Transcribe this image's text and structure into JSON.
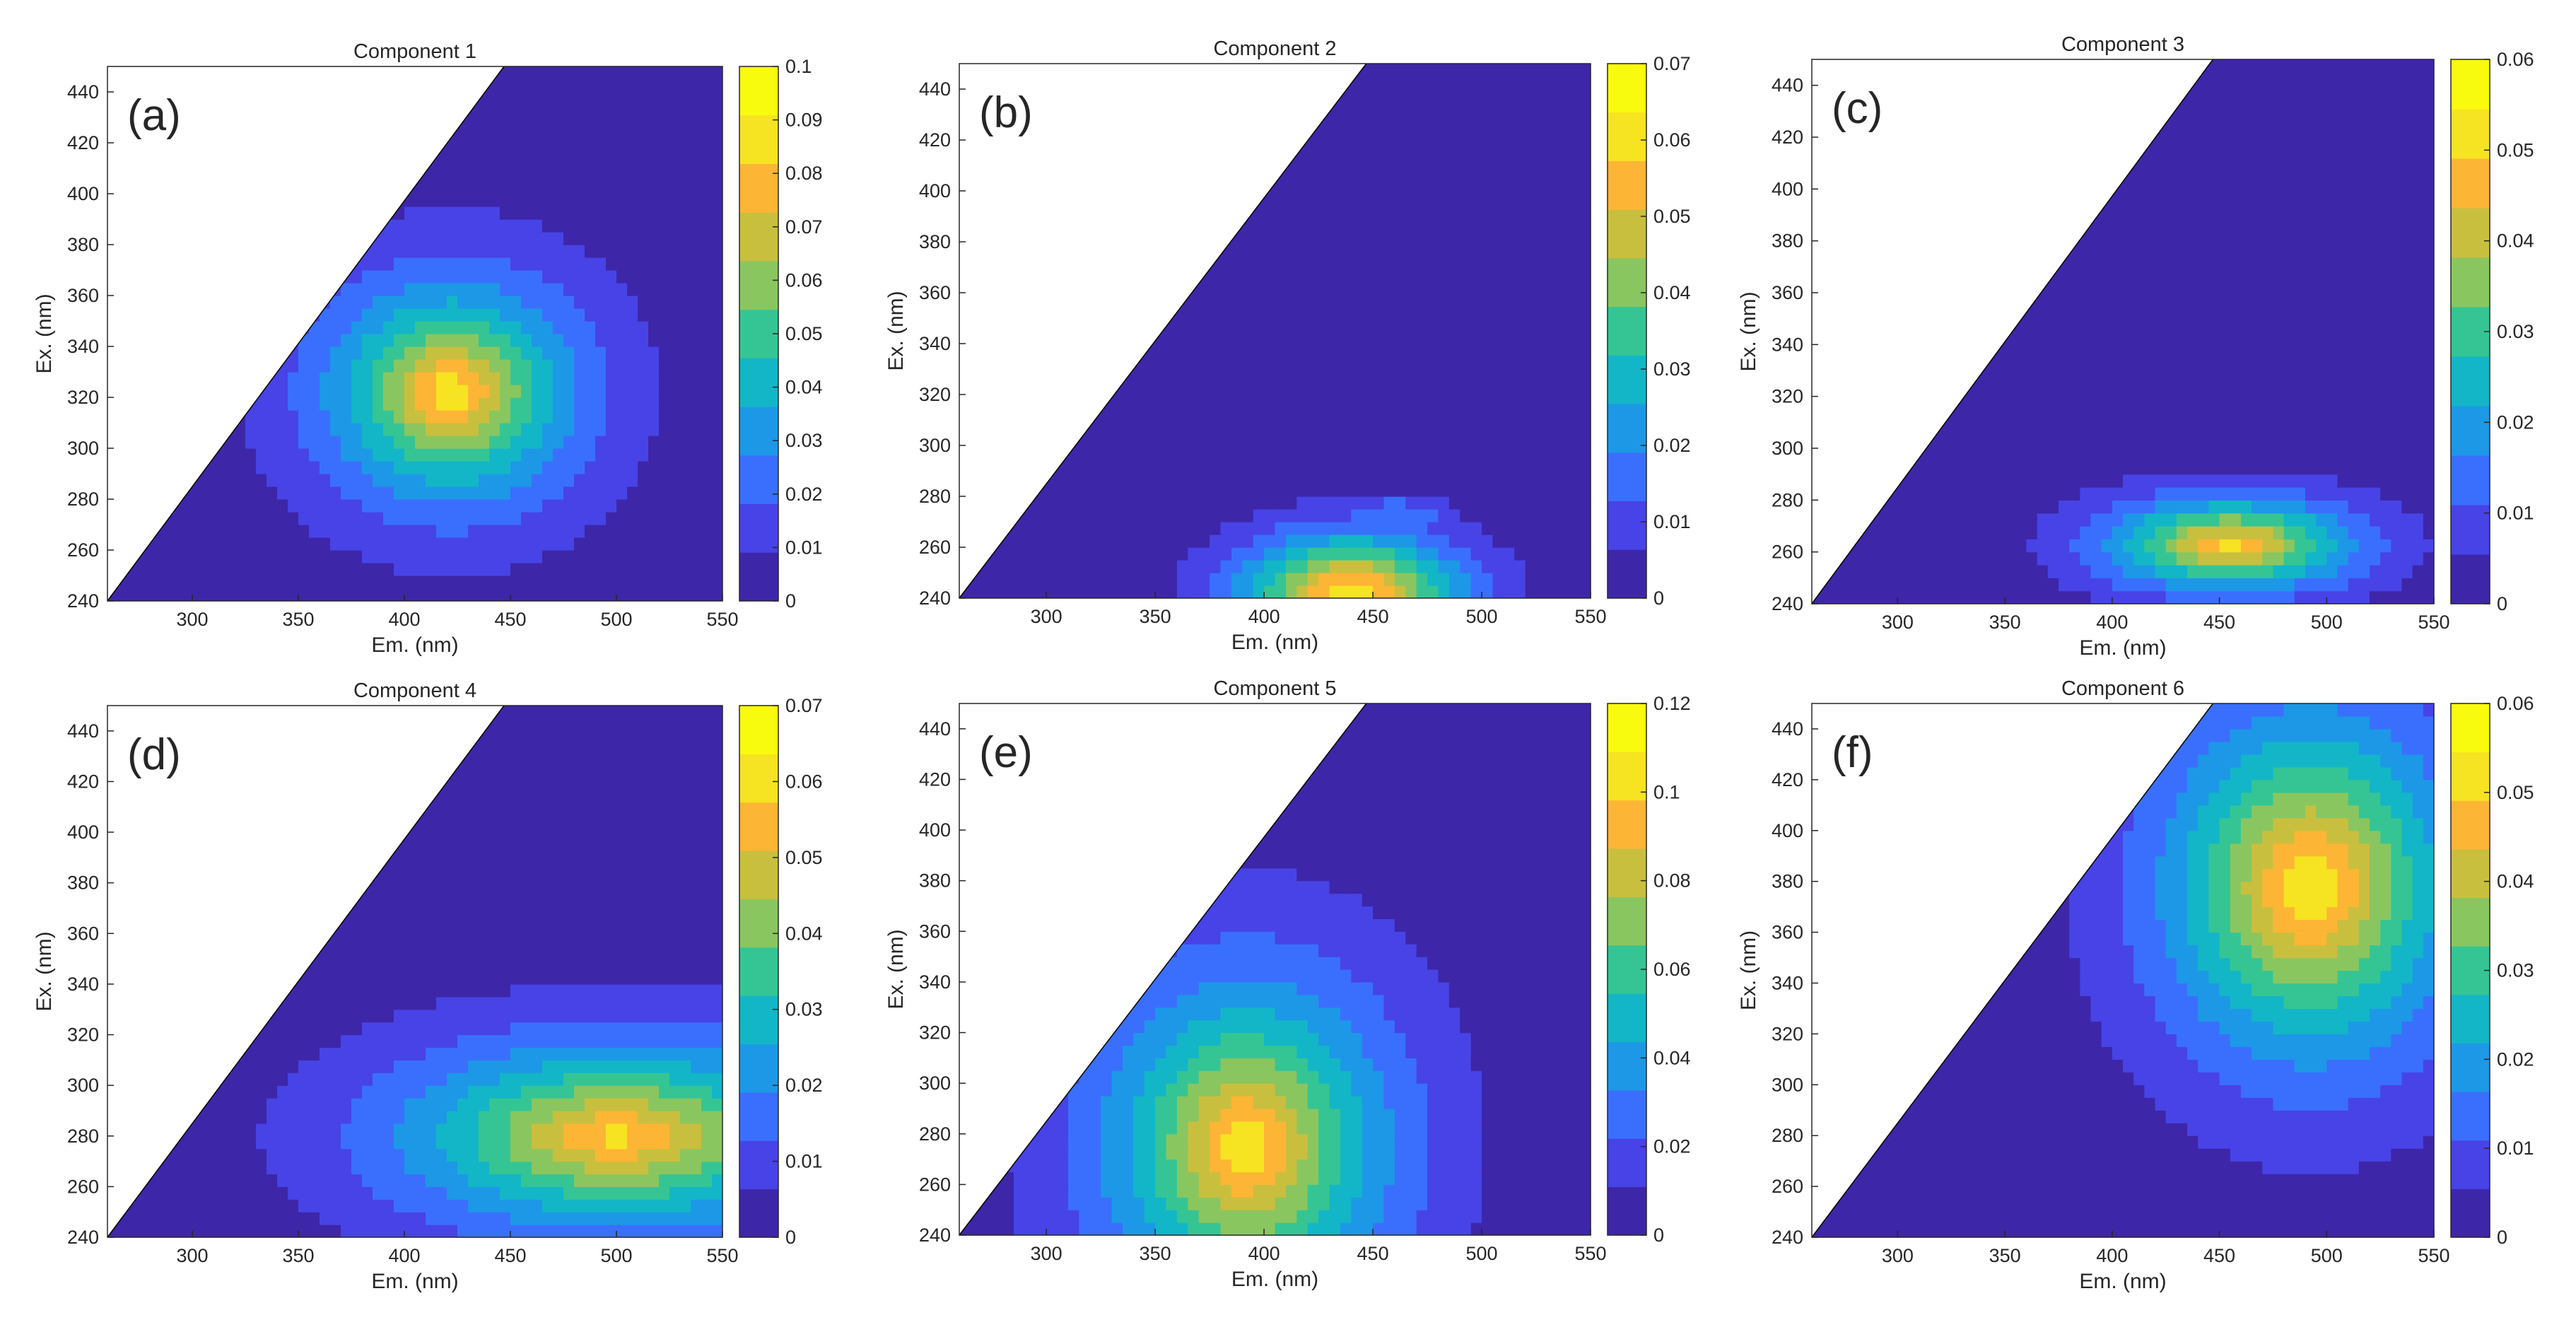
{
  "figure": {
    "colormap": [
      "#3e26a8",
      "#4743e6",
      "#3a6ffd",
      "#1d98e6",
      "#13b6c6",
      "#35c594",
      "#8ac65f",
      "#c9bf3e",
      "#fdb535",
      "#f6e322",
      "#f9fb0e"
    ],
    "background_color": "#3e26a8"
  },
  "chart_data": [
    {
      "type": "contour",
      "panel": "(a)",
      "title": "Component 1",
      "xlabel": "Em. (nm)",
      "ylabel": "Ex. (nm)",
      "xlim": [
        260,
        550
      ],
      "ylim": [
        240,
        450
      ],
      "xticks": [
        "300",
        "350",
        "400",
        "450",
        "500",
        "550"
      ],
      "yticks": [
        "240",
        "260",
        "280",
        "300",
        "320",
        "340",
        "360",
        "380",
        "400",
        "420",
        "440"
      ],
      "colorbar": {
        "min": 0,
        "max": 0.1,
        "ticks": [
          "0",
          "0.01",
          "0.02",
          "0.03",
          "0.04",
          "0.05",
          "0.06",
          "0.07",
          "0.08",
          "0.09",
          "0.1"
        ]
      },
      "rayleigh_cutoff": {
        "em_at_ex240": 260,
        "em_at_ex450": 447
      },
      "peaks": [
        {
          "em": 422,
          "ex": 322,
          "value": 0.1,
          "sx": 52,
          "sy": 38,
          "decay": 1.3
        },
        {
          "em": 430,
          "ex": 258,
          "value": 0.015,
          "sx": 25,
          "sy": 5,
          "decay": 2.0
        }
      ]
    },
    {
      "type": "contour",
      "panel": "(b)",
      "title": "Component 2",
      "xlabel": "Em. (nm)",
      "ylabel": "Ex. (nm)",
      "xlim": [
        260,
        550
      ],
      "ylim": [
        240,
        450
      ],
      "xticks": [
        "300",
        "350",
        "400",
        "450",
        "500",
        "550"
      ],
      "yticks": [
        "240",
        "260",
        "280",
        "300",
        "320",
        "340",
        "360",
        "380",
        "400",
        "420",
        "440"
      ],
      "colorbar": {
        "min": 0,
        "max": 0.07,
        "ticks": [
          "0",
          "0.01",
          "0.02",
          "0.03",
          "0.04",
          "0.05",
          "0.06",
          "0.07"
        ]
      },
      "rayleigh_cutoff": {
        "em_at_ex240": 260,
        "em_at_ex450": 447
      },
      "peaks": [
        {
          "em": 440,
          "ex": 242,
          "value": 0.07,
          "sx": 48,
          "sy": 22,
          "decay": 1.6
        },
        {
          "em": 460,
          "ex": 272,
          "value": 0.02,
          "sx": 30,
          "sy": 10,
          "decay": 2.0
        }
      ]
    },
    {
      "type": "contour",
      "panel": "(c)",
      "title": "Component 3",
      "xlabel": "Em. (nm)",
      "ylabel": "Ex. (nm)",
      "xlim": [
        260,
        550
      ],
      "ylim": [
        240,
        450
      ],
      "xticks": [
        "300",
        "350",
        "400",
        "450",
        "500",
        "550"
      ],
      "yticks": [
        "240",
        "260",
        "280",
        "300",
        "320",
        "340",
        "360",
        "380",
        "400",
        "420",
        "440"
      ],
      "colorbar": {
        "min": 0,
        "max": 0.06,
        "ticks": [
          "0",
          "0.01",
          "0.02",
          "0.03",
          "0.04",
          "0.05",
          "0.06"
        ]
      },
      "rayleigh_cutoff": {
        "em_at_ex240": 260,
        "em_at_ex450": 447
      },
      "peaks": [
        {
          "em": 455,
          "ex": 263,
          "value": 0.055,
          "sx": 55,
          "sy": 17,
          "decay": 1.5
        },
        {
          "em": 496,
          "ex": 263,
          "value": 0.022,
          "sx": 8,
          "sy": 8,
          "decay": 2.0
        }
      ]
    },
    {
      "type": "contour",
      "panel": "(d)",
      "title": "Component 4",
      "xlabel": "Em. (nm)",
      "ylabel": "Ex. (nm)",
      "xlim": [
        260,
        550
      ],
      "ylim": [
        240,
        450
      ],
      "xticks": [
        "300",
        "350",
        "400",
        "450",
        "500",
        "550"
      ],
      "yticks": [
        "240",
        "260",
        "280",
        "300",
        "320",
        "340",
        "360",
        "380",
        "400",
        "420",
        "440"
      ],
      "colorbar": {
        "min": 0,
        "max": 0.07,
        "ticks": [
          "0",
          "0.01",
          "0.02",
          "0.03",
          "0.04",
          "0.05",
          "0.06",
          "0.07"
        ]
      },
      "rayleigh_cutoff": {
        "em_at_ex240": 260,
        "em_at_ex450": 447
      },
      "peaks": [
        {
          "em": 500,
          "ex": 280,
          "value": 0.065,
          "sx": 95,
          "sy": 34,
          "decay": 1.4
        },
        {
          "em": 527,
          "ex": 280,
          "value": 0.03,
          "sx": 10,
          "sy": 13,
          "decay": 2.0
        }
      ]
    },
    {
      "type": "contour",
      "panel": "(e)",
      "title": "Component 5",
      "xlabel": "Em. (nm)",
      "ylabel": "Ex. (nm)",
      "xlim": [
        260,
        550
      ],
      "ylim": [
        240,
        450
      ],
      "xticks": [
        "300",
        "350",
        "400",
        "450",
        "500",
        "550"
      ],
      "yticks": [
        "240",
        "260",
        "280",
        "300",
        "320",
        "340",
        "360",
        "380",
        "400",
        "420",
        "440"
      ],
      "colorbar": {
        "min": 0,
        "max": 0.12,
        "ticks": [
          "0",
          "0.02",
          "0.04",
          "0.06",
          "0.08",
          "0.1",
          "0.12"
        ]
      },
      "rayleigh_cutoff": {
        "em_at_ex240": 260,
        "em_at_ex450": 447
      },
      "peaks": [
        {
          "em": 392,
          "ex": 275,
          "value": 0.12,
          "sx": 58,
          "sy": 58,
          "decay": 1.3
        }
      ]
    },
    {
      "type": "contour",
      "panel": "(f)",
      "title": "Component 6",
      "xlabel": "Em. (nm)",
      "ylabel": "Ex. (nm)",
      "xlim": [
        260,
        550
      ],
      "ylim": [
        240,
        450
      ],
      "xticks": [
        "300",
        "350",
        "400",
        "450",
        "500",
        "550"
      ],
      "yticks": [
        "240",
        "260",
        "280",
        "300",
        "320",
        "340",
        "360",
        "380",
        "400",
        "420",
        "440"
      ],
      "colorbar": {
        "min": 0,
        "max": 0.06,
        "ticks": [
          "0",
          "0.01",
          "0.02",
          "0.03",
          "0.04",
          "0.05",
          "0.06"
        ]
      },
      "rayleigh_cutoff": {
        "em_at_ex240": 260,
        "em_at_ex450": 447
      },
      "peaks": [
        {
          "em": 492,
          "ex": 378,
          "value": 0.06,
          "sx": 62,
          "sy": 62,
          "decay": 1.4
        }
      ]
    }
  ]
}
